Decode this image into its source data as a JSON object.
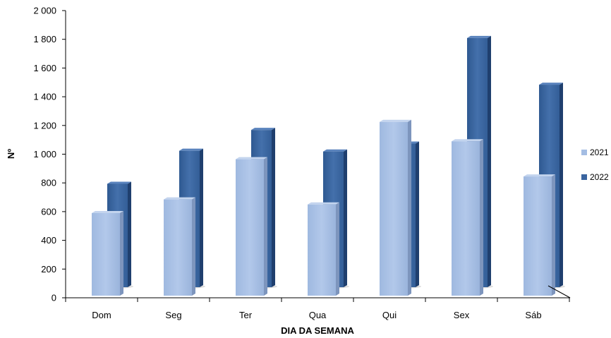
{
  "chart_data": {
    "type": "bar",
    "title": "",
    "xlabel": "DIA DA SEMANA",
    "ylabel": "Nº",
    "categories": [
      "Dom",
      "Seg",
      "Ter",
      "Qua",
      "Qui",
      "Sex",
      "Sáb"
    ],
    "ylim": [
      0,
      2000
    ],
    "yticks": [
      0,
      200,
      400,
      600,
      800,
      1000,
      1200,
      1400,
      1600,
      1800,
      2000
    ],
    "ytick_labels": [
      "0",
      "200",
      "400",
      "600",
      "800",
      "1 000",
      "1 200",
      "1 400",
      "1 600",
      "1 800",
      "2 000"
    ],
    "grid": false,
    "legend_position": "right",
    "series": [
      {
        "name": "2021",
        "color": "#a4bde3",
        "values": [
          575,
          670,
          950,
          635,
          1210,
          1075,
          830
        ]
      },
      {
        "name": "2022",
        "color": "#3a65a0",
        "values": [
          720,
          950,
          1095,
          945,
          1000,
          1735,
          1410
        ]
      }
    ]
  }
}
